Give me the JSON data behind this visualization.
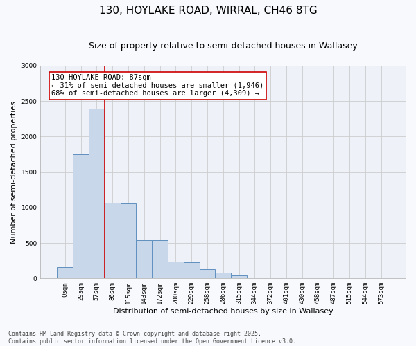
{
  "title1": "130, HOYLAKE ROAD, WIRRAL, CH46 8TG",
  "title2": "Size of property relative to semi-detached houses in Wallasey",
  "xlabel": "Distribution of semi-detached houses by size in Wallasey",
  "ylabel": "Number of semi-detached properties",
  "bin_labels": [
    "0sqm",
    "29sqm",
    "57sqm",
    "86sqm",
    "115sqm",
    "143sqm",
    "172sqm",
    "200sqm",
    "229sqm",
    "258sqm",
    "286sqm",
    "315sqm",
    "344sqm",
    "372sqm",
    "401sqm",
    "430sqm",
    "458sqm",
    "487sqm",
    "515sqm",
    "544sqm",
    "573sqm"
  ],
  "bar_heights": [
    155,
    1750,
    2390,
    1070,
    1060,
    540,
    540,
    240,
    230,
    130,
    80,
    40,
    0,
    0,
    0,
    0,
    0,
    0,
    0,
    0,
    0
  ],
  "bar_color": "#c8d8ea",
  "bar_edge_color": "#6090c0",
  "vline_color": "#cc0000",
  "vline_x_index": 3,
  "annotation_text": "130 HOYLAKE ROAD: 87sqm\n← 31% of semi-detached houses are smaller (1,946)\n68% of semi-detached houses are larger (4,309) →",
  "annotation_box_color": "#ffffff",
  "annotation_box_edge": "#cc0000",
  "ylim": [
    0,
    3000
  ],
  "yticks": [
    0,
    500,
    1000,
    1500,
    2000,
    2500,
    3000
  ],
  "grid_color": "#cccccc",
  "bg_color": "#f7f9fc",
  "plot_bg_color": "#eef2f8",
  "footnote": "Contains HM Land Registry data © Crown copyright and database right 2025.\nContains public sector information licensed under the Open Government Licence v3.0.",
  "title_fontsize": 11,
  "subtitle_fontsize": 9,
  "label_fontsize": 8,
  "tick_fontsize": 6.5,
  "footnote_fontsize": 6,
  "annotation_fontsize": 7.5
}
